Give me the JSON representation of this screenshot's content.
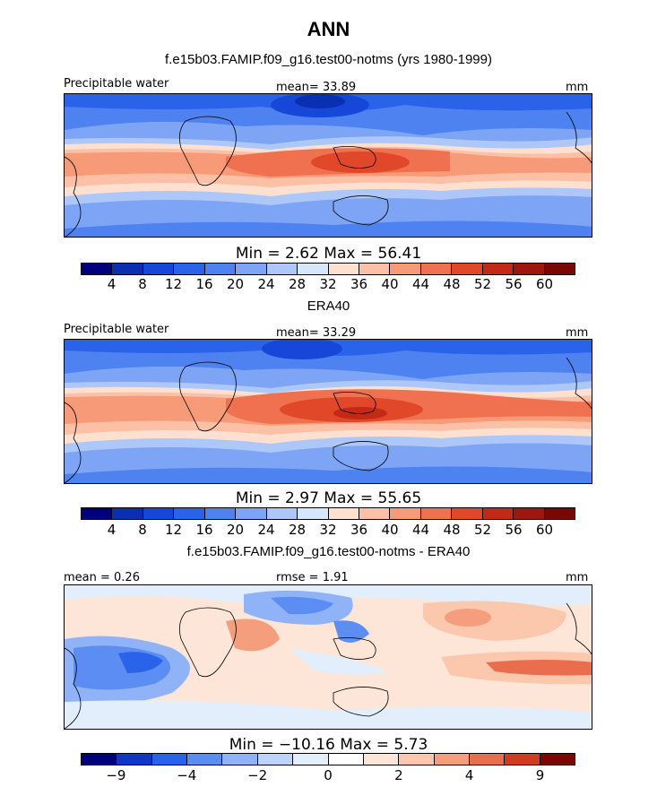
{
  "title": "ANN",
  "panels": [
    {
      "subtitle": "f.e15b03.FAMIP.f09_g16.test00-notms (yrs 1980-1999)",
      "variable": "Precipitable water",
      "stat_text": "mean=  33.89",
      "units": "mm",
      "minmax_text": "Min =    2.62  Max =   56.41",
      "tick_labels": [
        "4",
        "8",
        "12",
        "16",
        "20",
        "24",
        "28",
        "32",
        "36",
        "40",
        "44",
        "48",
        "52",
        "56",
        "60"
      ],
      "colors": [
        "#00007f",
        "#0a2fb0",
        "#1747d8",
        "#2a63ea",
        "#4d82f0",
        "#7ea4f5",
        "#adc7f8",
        "#d6e6fb",
        "#fde0d0",
        "#fcc0a6",
        "#f69a78",
        "#ef714f",
        "#e04829",
        "#c22a16",
        "#9e170f",
        "#7a0606"
      ]
    },
    {
      "subtitle": "ERA40",
      "variable": "Precipitable water",
      "stat_text": "mean=  33.29",
      "units": "mm",
      "minmax_text": "Min =    2.97  Max =   55.65",
      "tick_labels": [
        "4",
        "8",
        "12",
        "16",
        "20",
        "24",
        "28",
        "32",
        "36",
        "40",
        "44",
        "48",
        "52",
        "56",
        "60"
      ],
      "colors": [
        "#00007f",
        "#0a2fb0",
        "#1747d8",
        "#2a63ea",
        "#4d82f0",
        "#7ea4f5",
        "#adc7f8",
        "#d6e6fb",
        "#fde0d0",
        "#fcc0a6",
        "#f69a78",
        "#ef714f",
        "#e04829",
        "#c22a16",
        "#9e170f",
        "#7a0606"
      ]
    },
    {
      "subtitle": "f.e15b03.FAMIP.f09_g16.test00-notms - ERA40",
      "variable": "mean =   0.26",
      "stat_text": "rmse =    1.91",
      "units": "mm",
      "minmax_text": "Min = −10.16  Max =    5.73",
      "tick_labels": [
        "−9",
        "",
        "−4",
        "",
        "−2",
        "",
        "0",
        "",
        "2",
        "",
        "4",
        "",
        "9"
      ],
      "colors": [
        "#00007f",
        "#1035c8",
        "#2a63ea",
        "#5b8df2",
        "#8fb3f6",
        "#bcd4fa",
        "#e2eefc",
        "#ffffff",
        "#fde6d8",
        "#fbc7ad",
        "#f59e7d",
        "#ea6d4d",
        "#d03b22",
        "#7a0606"
      ]
    }
  ],
  "chart_data": [
    {
      "type": "heatmap",
      "title": "f.e15b03.FAMIP.f09_g16.test00-notms (yrs 1980-1999)",
      "variable": "Precipitable water",
      "units": "mm",
      "mean": 33.89,
      "min": 2.62,
      "max": 56.41,
      "levels": [
        4,
        8,
        12,
        16,
        20,
        24,
        28,
        32,
        36,
        40,
        44,
        48,
        52,
        56,
        60
      ]
    },
    {
      "type": "heatmap",
      "title": "ERA40",
      "variable": "Precipitable water",
      "units": "mm",
      "mean": 33.29,
      "min": 2.97,
      "max": 55.65,
      "levels": [
        4,
        8,
        12,
        16,
        20,
        24,
        28,
        32,
        36,
        40,
        44,
        48,
        52,
        56,
        60
      ]
    },
    {
      "type": "heatmap",
      "title": "f.e15b03.FAMIP.f09_g16.test00-notms - ERA40",
      "units": "mm",
      "mean": 0.26,
      "rmse": 1.91,
      "min": -10.16,
      "max": 5.73,
      "levels": [
        -9,
        -4,
        -2,
        0,
        2,
        4,
        9
      ]
    }
  ]
}
